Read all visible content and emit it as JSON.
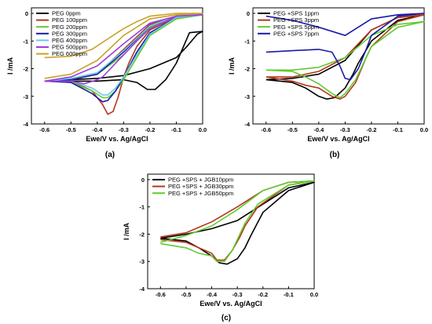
{
  "chart_data": [
    {
      "type": "line",
      "caption": "(a)",
      "xlabel": "Ewe/V vs. Ag/AgCl",
      "ylabel": "I /mA",
      "xlim": [
        -0.65,
        0.0
      ],
      "ylim": [
        -4,
        0.2
      ],
      "xticks": [
        -0.6,
        -0.5,
        -0.4,
        -0.3,
        -0.2,
        -0.1,
        0.0
      ],
      "yticks": [
        0,
        -1,
        -2,
        -3,
        -4
      ],
      "grid": false,
      "legend_position": "top-left",
      "series": [
        {
          "name": "PEG 0ppm",
          "color": "#000000",
          "x": [
            -0.6,
            -0.5,
            -0.4,
            -0.3,
            -0.25,
            -0.21,
            -0.18,
            -0.14,
            -0.1,
            -0.05,
            0.0,
            -0.02,
            -0.06,
            -0.1,
            -0.2,
            -0.3,
            -0.4,
            -0.5,
            -0.6
          ],
          "y": [
            -2.45,
            -2.45,
            -2.45,
            -2.4,
            -2.5,
            -2.75,
            -2.75,
            -2.4,
            -1.8,
            -0.7,
            -0.65,
            -0.75,
            -1.2,
            -1.6,
            -2.0,
            -2.25,
            -2.35,
            -2.4,
            -2.45
          ]
        },
        {
          "name": "PEG 100ppm",
          "color": "#b5361b",
          "x": [
            -0.6,
            -0.5,
            -0.42,
            -0.38,
            -0.36,
            -0.34,
            -0.32,
            -0.3,
            -0.28,
            -0.25,
            -0.2,
            -0.1,
            0.0,
            -0.1,
            -0.2,
            -0.3,
            -0.4,
            -0.5,
            -0.6
          ],
          "y": [
            -2.45,
            -2.45,
            -2.8,
            -3.3,
            -3.65,
            -3.55,
            -3.0,
            -2.3,
            -1.8,
            -1.2,
            -0.6,
            -0.15,
            -0.05,
            -0.1,
            -0.4,
            -1.3,
            -2.2,
            -2.4,
            -2.45
          ]
        },
        {
          "name": "PEG 200ppm",
          "color": "#5fcc2e",
          "x": [
            -0.6,
            -0.5,
            -0.42,
            -0.38,
            -0.36,
            -0.33,
            -0.3,
            -0.25,
            -0.2,
            -0.1,
            0.0,
            -0.1,
            -0.2,
            -0.3,
            -0.4,
            -0.5,
            -0.6
          ],
          "y": [
            -2.45,
            -2.5,
            -2.8,
            -3.05,
            -3.05,
            -2.8,
            -2.4,
            -1.6,
            -0.8,
            -0.2,
            -0.05,
            -0.1,
            -0.5,
            -1.5,
            -2.2,
            -2.4,
            -2.45
          ]
        },
        {
          "name": "PEG 300ppm",
          "color": "#1a1aa8",
          "x": [
            -0.6,
            -0.5,
            -0.42,
            -0.38,
            -0.36,
            -0.33,
            -0.3,
            -0.25,
            -0.2,
            -0.1,
            0.0,
            -0.1,
            -0.2,
            -0.3,
            -0.4,
            -0.5,
            -0.6
          ],
          "y": [
            -2.45,
            -2.5,
            -2.9,
            -3.2,
            -3.15,
            -2.8,
            -2.3,
            -1.4,
            -0.7,
            -0.15,
            -0.05,
            -0.1,
            -0.45,
            -1.4,
            -2.2,
            -2.4,
            -2.45
          ]
        },
        {
          "name": "PEG 400ppm",
          "color": "#6ec6e8",
          "x": [
            -0.6,
            -0.5,
            -0.42,
            -0.38,
            -0.36,
            -0.33,
            -0.3,
            -0.25,
            -0.2,
            -0.1,
            0.0,
            -0.1,
            -0.2,
            -0.3,
            -0.4,
            -0.5,
            -0.6
          ],
          "y": [
            -2.45,
            -2.45,
            -2.7,
            -2.95,
            -2.95,
            -2.7,
            -2.3,
            -1.5,
            -0.75,
            -0.15,
            -0.05,
            -0.1,
            -0.45,
            -1.35,
            -2.15,
            -2.35,
            -2.45
          ]
        },
        {
          "name": "PEG 500ppm",
          "color": "#9b3fd6",
          "x": [
            -0.6,
            -0.5,
            -0.45,
            -0.4,
            -0.38,
            -0.35,
            -0.3,
            -0.25,
            -0.2,
            -0.1,
            0.0,
            -0.1,
            -0.2,
            -0.3,
            -0.4,
            -0.5,
            -0.6
          ],
          "y": [
            -2.45,
            -2.45,
            -2.55,
            -2.4,
            -2.3,
            -2.0,
            -1.5,
            -1.0,
            -0.55,
            -0.1,
            -0.05,
            -0.1,
            -0.35,
            -1.1,
            -1.9,
            -2.3,
            -2.45
          ]
        },
        {
          "name": "PEG 600ppm",
          "color": "#c9a227",
          "x": [
            -0.6,
            -0.5,
            -0.42,
            -0.38,
            -0.34,
            -0.3,
            -0.25,
            -0.2,
            -0.1,
            0.0,
            -0.1,
            -0.2,
            -0.3,
            -0.4,
            -0.5,
            -0.6
          ],
          "y": [
            -1.6,
            -1.55,
            -1.3,
            -1.05,
            -0.8,
            -0.55,
            -0.3,
            -0.1,
            0.0,
            0.0,
            -0.05,
            -0.2,
            -0.8,
            -1.7,
            -2.2,
            -2.35
          ]
        }
      ]
    },
    {
      "type": "line",
      "caption": "(b)",
      "xlabel": "Ewe/V vs. Ag/AgCl",
      "ylabel": "I /mA",
      "xlim": [
        -0.65,
        0.0
      ],
      "ylim": [
        -4,
        0.2
      ],
      "xticks": [
        -0.6,
        -0.5,
        -0.4,
        -0.3,
        -0.2,
        -0.1,
        0.0
      ],
      "yticks": [
        0,
        -1,
        -2,
        -3,
        -4
      ],
      "grid": false,
      "legend_position": "top-left",
      "series": [
        {
          "name": "PEG +SPS 1ppm",
          "color": "#000000",
          "x": [
            -0.6,
            -0.5,
            -0.45,
            -0.4,
            -0.37,
            -0.34,
            -0.3,
            -0.27,
            -0.25,
            -0.2,
            -0.1,
            0.0,
            -0.1,
            -0.2,
            -0.3,
            -0.4,
            -0.5,
            -0.6
          ],
          "y": [
            -2.4,
            -2.5,
            -2.7,
            -3.0,
            -3.1,
            -3.05,
            -2.7,
            -2.2,
            -1.8,
            -1.0,
            -0.25,
            -0.05,
            -0.15,
            -0.6,
            -1.7,
            -2.2,
            -2.35,
            -2.4
          ]
        },
        {
          "name": "PEG +SPS 3ppm",
          "color": "#b5361b",
          "x": [
            -0.6,
            -0.5,
            -0.45,
            -0.4,
            -0.35,
            -0.32,
            -0.3,
            -0.26,
            -0.22,
            -0.2,
            -0.1,
            0.0,
            -0.1,
            -0.2,
            -0.3,
            -0.4,
            -0.5,
            -0.6
          ],
          "y": [
            -2.3,
            -2.45,
            -2.6,
            -2.7,
            -3.0,
            -3.1,
            -3.0,
            -2.5,
            -1.6,
            -1.2,
            -0.3,
            -0.05,
            -0.15,
            -0.6,
            -1.6,
            -2.1,
            -2.3,
            -2.3
          ]
        },
        {
          "name": "PEG +SPS 5ppm",
          "color": "#5fcc2e",
          "x": [
            -0.6,
            -0.5,
            -0.45,
            -0.4,
            -0.35,
            -0.32,
            -0.3,
            -0.26,
            -0.22,
            -0.2,
            -0.1,
            0.0,
            -0.1,
            -0.2,
            -0.3,
            -0.4,
            -0.5,
            -0.6
          ],
          "y": [
            -2.05,
            -2.1,
            -2.3,
            -2.55,
            -2.9,
            -3.05,
            -2.9,
            -2.4,
            -1.6,
            -1.2,
            -0.5,
            -0.3,
            -0.4,
            -0.8,
            -1.6,
            -1.95,
            -2.05,
            -2.05
          ]
        },
        {
          "name": "PEG +SPS 7ppm",
          "color": "#1a1aa8",
          "x": [
            -0.6,
            -0.5,
            -0.4,
            -0.35,
            -0.32,
            -0.3,
            -0.28,
            -0.25,
            -0.22,
            -0.2,
            -0.1,
            0.0,
            -0.1,
            -0.2,
            -0.3,
            -0.4,
            -0.5,
            -0.6
          ],
          "y": [
            -1.4,
            -1.35,
            -1.3,
            -1.4,
            -1.9,
            -2.35,
            -2.4,
            -2.0,
            -1.3,
            -0.8,
            -0.1,
            0.0,
            -0.05,
            -0.2,
            -0.8,
            -0.5,
            -0.25,
            -0.1
          ]
        }
      ]
    },
    {
      "type": "line",
      "caption": "(c)",
      "xlabel": "Ewe/V vs. Ag/AgCl",
      "ylabel": "I /mA",
      "xlim": [
        -0.65,
        0.0
      ],
      "ylim": [
        -4,
        0.2
      ],
      "xticks": [
        -0.6,
        -0.5,
        -0.4,
        -0.3,
        -0.2,
        -0.1,
        0.0
      ],
      "yticks": [
        0,
        -1,
        -2,
        -3,
        -4
      ],
      "grid": false,
      "legend_position": "top-left",
      "series": [
        {
          "name": "PEG +SPS + JGB10ppm",
          "color": "#000000",
          "x": [
            -0.6,
            -0.5,
            -0.45,
            -0.4,
            -0.37,
            -0.34,
            -0.3,
            -0.27,
            -0.25,
            -0.2,
            -0.1,
            0.0,
            -0.1,
            -0.2,
            -0.3,
            -0.4,
            -0.5,
            -0.6
          ],
          "y": [
            -2.15,
            -2.25,
            -2.5,
            -2.8,
            -3.05,
            -3.1,
            -2.9,
            -2.5,
            -2.1,
            -1.2,
            -0.4,
            -0.1,
            -0.3,
            -0.9,
            -1.5,
            -1.8,
            -2.0,
            -2.15
          ]
        },
        {
          "name": "PEG +SPS + JGB30ppm",
          "color": "#b5361b",
          "x": [
            -0.6,
            -0.5,
            -0.45,
            -0.4,
            -0.38,
            -0.35,
            -0.32,
            -0.29,
            -0.27,
            -0.22,
            -0.1,
            0.0,
            -0.1,
            -0.2,
            -0.3,
            -0.4,
            -0.5,
            -0.6
          ],
          "y": [
            -2.2,
            -2.3,
            -2.5,
            -2.7,
            -2.95,
            -2.95,
            -2.6,
            -2.1,
            -1.7,
            -1.0,
            -0.2,
            -0.05,
            -0.1,
            -0.4,
            -1.0,
            -1.55,
            -1.95,
            -2.1
          ]
        },
        {
          "name": "PEG +SPS + JGB50ppm",
          "color": "#5fcc2e",
          "x": [
            -0.6,
            -0.5,
            -0.45,
            -0.4,
            -0.38,
            -0.35,
            -0.32,
            -0.29,
            -0.27,
            -0.22,
            -0.1,
            0.0,
            -0.1,
            -0.2,
            -0.3,
            -0.4,
            -0.5,
            -0.6
          ],
          "y": [
            -2.35,
            -2.5,
            -2.7,
            -2.8,
            -3.0,
            -3.0,
            -2.6,
            -2.0,
            -1.6,
            -0.9,
            -0.2,
            -0.05,
            -0.1,
            -0.4,
            -1.1,
            -1.7,
            -2.05,
            -2.3
          ]
        }
      ]
    }
  ]
}
